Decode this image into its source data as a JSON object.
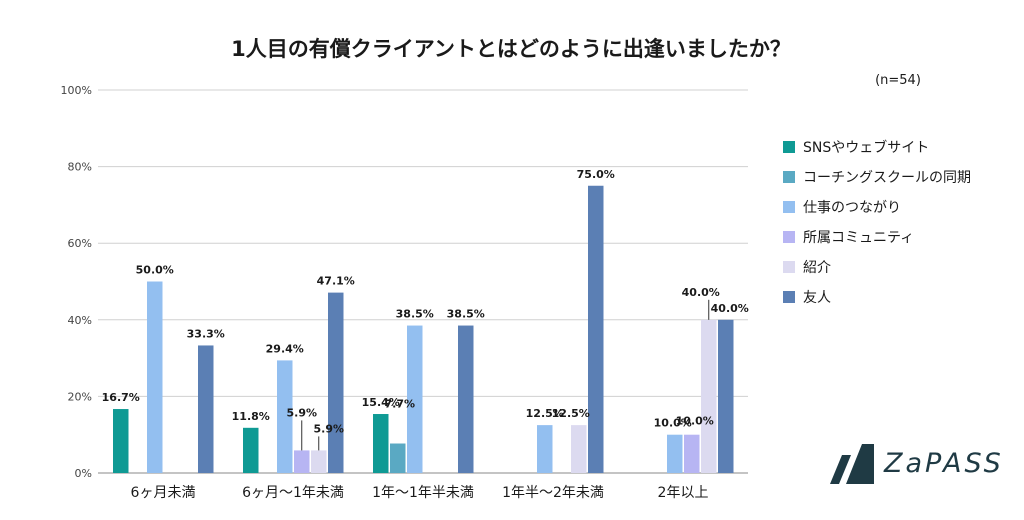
{
  "chart_data": {
    "type": "bar",
    "title": "1人目の有償クライアントとはどのように出逢いましたか？",
    "note": "(n=54)",
    "categories": [
      "6ヶ月未満",
      "6ヶ月〜1年未満",
      "1年〜1年半未満",
      "1年半〜2年未満",
      "2年以上"
    ],
    "y_ticks": [
      "0%",
      "20%",
      "40%",
      "60%",
      "80%",
      "100%"
    ],
    "ylim": [
      0,
      100
    ],
    "grid": true,
    "legend_position": "right",
    "series": [
      {
        "name": "SNSやウェブサイト",
        "color": "#0f9a94",
        "values": [
          16.7,
          11.8,
          15.4,
          0,
          0
        ],
        "labels": [
          "16.7%",
          "11.8%",
          "15.4%",
          "",
          ""
        ]
      },
      {
        "name": "コーチングスクールの同期",
        "color": "#5aa9c3",
        "values": [
          0,
          0,
          7.7,
          0,
          0
        ],
        "labels": [
          "",
          "",
          "7.7%",
          "",
          ""
        ]
      },
      {
        "name": "仕事のつながり",
        "color": "#93bff0",
        "values": [
          50.0,
          29.4,
          38.5,
          12.5,
          10.0
        ],
        "labels": [
          "50.0%",
          "29.4%",
          "38.5%",
          "12.5%",
          "10.0%"
        ]
      },
      {
        "name": "所属コミュニティ",
        "color": "#b7b5f3",
        "values": [
          0,
          5.9,
          0,
          0,
          10.0
        ],
        "labels": [
          "",
          "5.9%",
          "",
          "",
          "10.0%"
        ]
      },
      {
        "name": "紹介",
        "color": "#dcdaf0",
        "values": [
          0,
          5.9,
          0,
          12.5,
          40.0
        ],
        "labels": [
          "",
          "5.9%",
          "",
          "12.5%",
          "40.0%"
        ]
      },
      {
        "name": "友人",
        "color": "#5b7fb4",
        "values": [
          33.3,
          47.1,
          38.5,
          75.0,
          40.0
        ],
        "labels": [
          "33.3%",
          "47.1%",
          "38.5%",
          "75.0%",
          "40.0%"
        ]
      }
    ]
  },
  "logo": {
    "text": "ZaPASS",
    "icon": "zapass-logo-icon",
    "color": "#1f3a44"
  }
}
